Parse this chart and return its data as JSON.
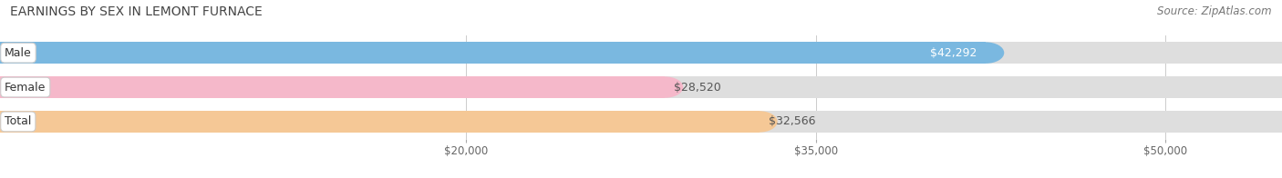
{
  "title": "EARNINGS BY SEX IN LEMONT FURNACE",
  "source": "Source: ZipAtlas.com",
  "categories": [
    "Male",
    "Female",
    "Total"
  ],
  "values": [
    42292,
    28520,
    32566
  ],
  "bar_colors": [
    "#7ab8e0",
    "#f5b8ca",
    "#f5c896"
  ],
  "bar_bg_color": "#dedede",
  "value_labels": [
    "$42,292",
    "$28,520",
    "$32,566"
  ],
  "value_label_inside": [
    true,
    false,
    false
  ],
  "xlim_min": 0,
  "xlim_max": 55000,
  "xticks": [
    20000,
    35000,
    50000
  ],
  "xtick_labels": [
    "$20,000",
    "$35,000",
    "$50,000"
  ],
  "title_fontsize": 10,
  "source_fontsize": 8.5,
  "bar_label_fontsize": 9,
  "value_fontsize": 9,
  "bar_height": 0.62,
  "bar_gap": 0.38,
  "figsize": [
    14.06,
    1.96
  ],
  "dpi": 100
}
